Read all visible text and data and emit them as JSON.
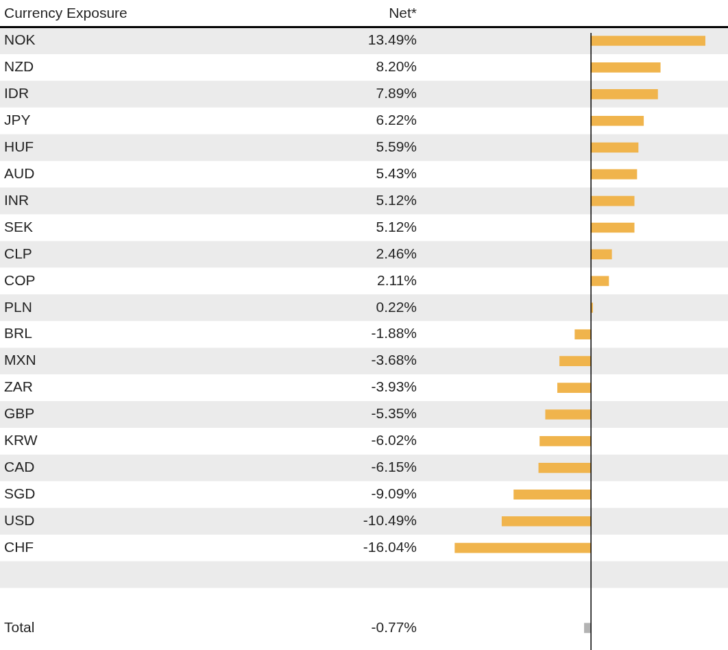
{
  "chart_data": {
    "type": "bar",
    "orientation": "horizontal",
    "ylabel": "Currency Exposure",
    "xlabel": "Net*",
    "tick_labels": "y",
    "categories": [
      "NOK",
      "NZD",
      "IDR",
      "JPY",
      "HUF",
      "AUD",
      "INR",
      "SEK",
      "CLP",
      "COP",
      "PLN",
      "BRL",
      "MXN",
      "ZAR",
      "GBP",
      "KRW",
      "CAD",
      "SGD",
      "USD",
      "CHF",
      null,
      null,
      "Total"
    ],
    "values": [
      13.49,
      8.2,
      7.89,
      6.22,
      5.59,
      5.43,
      5.12,
      5.12,
      2.46,
      2.11,
      0.22,
      -1.88,
      -3.68,
      -3.93,
      -5.35,
      -6.02,
      -6.15,
      -9.09,
      -10.49,
      -16.04,
      null,
      null,
      -0.77
    ],
    "value_labels": [
      "13.49%",
      "8.20%",
      "7.89%",
      "6.22%",
      "5.59%",
      "5.43%",
      "5.12%",
      "5.12%",
      "2.46%",
      "2.11%",
      "0.22%",
      "-1.88%",
      "-3.68%",
      "-3.93%",
      "-5.35%",
      "-6.02%",
      "-6.15%",
      "-9.09%",
      "-10.49%",
      "-16.04%",
      null,
      null,
      "-0.77%"
    ],
    "colors": [
      "#f0b44c",
      "#f0b44c",
      "#f0b44c",
      "#f0b44c",
      "#f0b44c",
      "#f0b44c",
      "#f0b44c",
      "#f0b44c",
      "#f0b44c",
      "#f0b44c",
      "#f0b44c",
      "#f0b44c",
      "#f0b44c",
      "#f0b44c",
      "#f0b44c",
      "#f0b44c",
      "#f0b44c",
      "#f0b44c",
      "#f0b44c",
      "#f0b44c",
      null,
      null,
      "#b3b3b3"
    ],
    "legend": false
  }
}
